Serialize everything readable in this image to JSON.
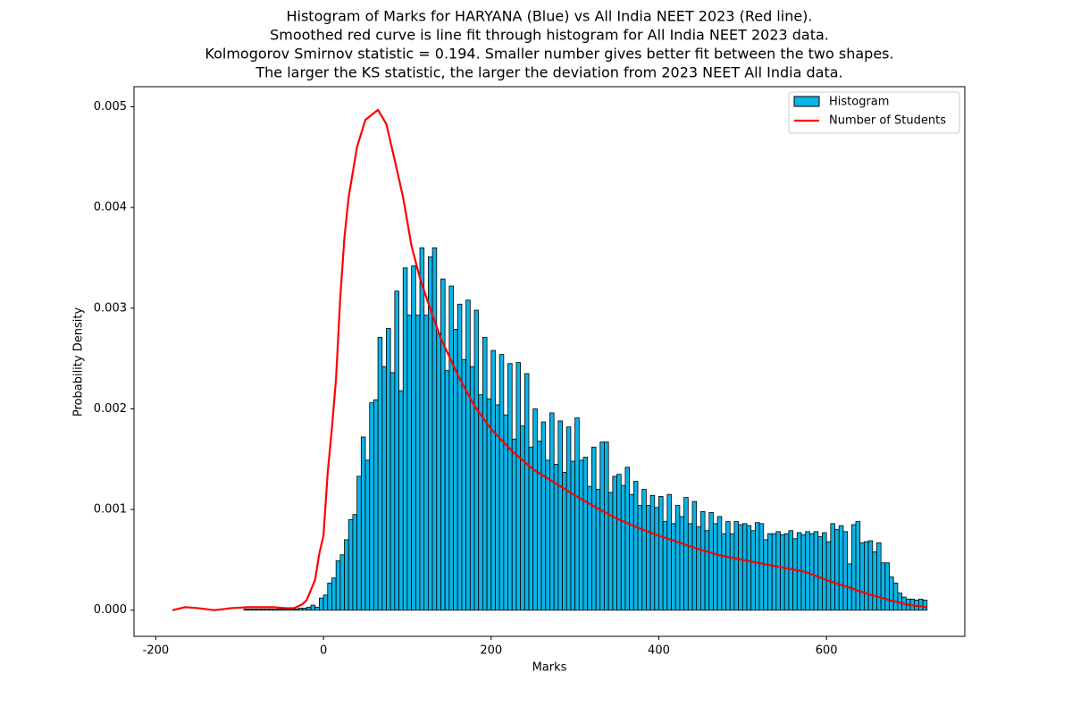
{
  "chart_data": {
    "type": "histogram",
    "title": [
      "Histogram of Marks for HARYANA (Blue) vs All India NEET 2023 (Red line).",
      "Smoothed red curve is line fit through histogram for All India NEET 2023 data.",
      "Kolmogorov Smirnov statistic = 0.194. Smaller number gives better fit between the two shapes.",
      "The larger the KS statistic, the larger the deviation from 2023 NEET All India data."
    ],
    "xlabel": "Marks",
    "ylabel": "Probability Density",
    "xlim": [
      -226,
      765
    ],
    "ylim": [
      -0.00026,
      0.0052
    ],
    "xticks": [
      -200,
      0,
      200,
      400,
      600
    ],
    "yticks": [
      {
        "value": 0,
        "label": "0.000"
      },
      {
        "value": 0.001,
        "label": "0.001"
      },
      {
        "value": 0.002,
        "label": "0.002"
      },
      {
        "value": 0.003,
        "label": "0.003"
      },
      {
        "value": 0.004,
        "label": "0.004"
      },
      {
        "value": 0.005,
        "label": "0.005"
      }
    ],
    "legend": "upper right",
    "series": [
      {
        "name": "Histogram",
        "type": "histogram",
        "color": "#0bb4e6",
        "edgecolor": "#000000",
        "bins": [
          -95,
          -90,
          -85,
          -80,
          -75,
          -70,
          -65,
          -60,
          -55,
          -50,
          -45,
          -40,
          -35,
          -30,
          -25,
          -20,
          -15,
          -10,
          -5,
          0,
          5,
          10,
          15,
          20,
          25,
          30,
          35,
          40,
          45,
          50,
          55,
          60,
          65,
          70,
          75,
          80,
          85,
          90,
          95,
          100,
          105,
          110,
          115,
          120,
          125,
          130,
          135,
          140,
          145,
          150,
          155,
          160,
          165,
          170,
          175,
          180,
          185,
          190,
          195,
          200,
          205,
          210,
          215,
          220,
          225,
          230,
          235,
          240,
          245,
          250,
          255,
          260,
          265,
          270,
          275,
          280,
          285,
          290,
          295,
          300,
          305,
          310,
          315,
          320,
          325,
          330,
          335,
          340,
          345,
          350,
          355,
          360,
          365,
          370,
          375,
          380,
          385,
          390,
          395,
          400,
          405,
          410,
          415,
          420,
          425,
          430,
          435,
          440,
          445,
          450,
          455,
          460,
          465,
          470,
          475,
          480,
          485,
          490,
          495,
          500,
          505,
          510,
          515,
          520,
          525,
          530,
          535,
          540,
          545,
          550,
          555,
          560,
          565,
          570,
          575,
          580,
          585,
          590,
          595,
          600,
          605,
          610,
          615,
          620,
          625,
          630,
          635,
          640,
          645,
          650,
          655,
          660,
          665,
          670,
          675,
          680,
          685,
          690,
          695,
          700,
          705,
          710,
          715,
          720
        ],
        "values": [
          1e-05,
          1e-05,
          1e-05,
          1e-05,
          1e-05,
          1e-05,
          1e-05,
          1e-05,
          1e-05,
          1e-05,
          1e-05,
          1e-05,
          1e-05,
          2e-05,
          2e-05,
          3e-05,
          5e-05,
          3e-05,
          0.00012,
          0.00015,
          0.00027,
          0.00032,
          0.00049,
          0.00055,
          0.0007,
          0.0009,
          0.00095,
          0.00133,
          0.00172,
          0.00149,
          0.00206,
          0.00209,
          0.00271,
          0.00242,
          0.0028,
          0.00236,
          0.00317,
          0.00218,
          0.0034,
          0.00293,
          0.00342,
          0.00293,
          0.0036,
          0.00293,
          0.00351,
          0.0036,
          0.00275,
          0.00329,
          0.00238,
          0.00322,
          0.00279,
          0.00304,
          0.00249,
          0.00308,
          0.00242,
          0.00298,
          0.00214,
          0.00271,
          0.0021,
          0.00258,
          0.00204,
          0.00254,
          0.00194,
          0.00245,
          0.0017,
          0.00246,
          0.00183,
          0.00235,
          0.00162,
          0.002,
          0.00168,
          0.00187,
          0.00149,
          0.00196,
          0.00145,
          0.00188,
          0.00137,
          0.00182,
          0.00148,
          0.00191,
          0.00149,
          0.00152,
          0.00123,
          0.00162,
          0.0012,
          0.00167,
          0.00167,
          0.00117,
          0.00133,
          0.00135,
          0.00124,
          0.00142,
          0.00115,
          0.00128,
          0.00104,
          0.0012,
          0.00104,
          0.00114,
          0.00102,
          0.00113,
          0.00088,
          0.00115,
          0.00086,
          0.00104,
          0.00093,
          0.00112,
          0.00086,
          0.00108,
          0.00083,
          0.00098,
          0.00079,
          0.00097,
          0.00086,
          0.00093,
          0.00076,
          0.00088,
          0.00076,
          0.00088,
          0.00085,
          0.00086,
          0.00084,
          0.00079,
          0.00087,
          0.00086,
          0.0007,
          0.00076,
          0.00076,
          0.00078,
          0.00075,
          0.00076,
          0.00079,
          0.00071,
          0.00077,
          0.00075,
          0.00078,
          0.00076,
          0.00078,
          0.00073,
          0.00077,
          0.00068,
          0.00086,
          0.0008,
          0.00084,
          0.00078,
          0.00046,
          0.00085,
          0.00088,
          0.00067,
          0.00068,
          0.00069,
          0.00058,
          0.00067,
          0.00047,
          0.00047,
          0.00033,
          0.00027,
          0.00017,
          0.00013,
          0.00011,
          0.00011,
          0.0001,
          0.00011,
          0.0001
        ]
      },
      {
        "name": "Number of Students",
        "type": "line",
        "color": "#ff0000",
        "x": [
          -180,
          -165,
          -150,
          -130,
          -110,
          -90,
          -60,
          -45,
          -35,
          -25,
          -20,
          -10,
          -5,
          0,
          5,
          10,
          15,
          20,
          25,
          30,
          40,
          50,
          65,
          75,
          85,
          95,
          105,
          115,
          125,
          140,
          160,
          180,
          200,
          225,
          250,
          275,
          300,
          325,
          350,
          375,
          400,
          425,
          450,
          475,
          500,
          525,
          550,
          575,
          600,
          625,
          650,
          675,
          700,
          720
        ],
        "values": [
          0,
          3e-05,
          2e-05,
          0,
          2e-05,
          3e-05,
          3e-05,
          2e-05,
          2e-05,
          6e-05,
          0.0001,
          0.0003,
          0.00056,
          0.00074,
          0.00136,
          0.0018,
          0.0023,
          0.0031,
          0.0037,
          0.0041,
          0.0046,
          0.00487,
          0.00497,
          0.00483,
          0.00447,
          0.0041,
          0.00362,
          0.0033,
          0.00305,
          0.0027,
          0.00234,
          0.00203,
          0.0018,
          0.00158,
          0.0014,
          0.00127,
          0.00114,
          0.00102,
          0.00091,
          0.00082,
          0.00074,
          0.00067,
          0.0006,
          0.00054,
          0.0005,
          0.00046,
          0.00042,
          0.00038,
          0.0003,
          0.00023,
          0.00016,
          0.0001,
          5e-05,
          3e-05
        ]
      }
    ]
  }
}
